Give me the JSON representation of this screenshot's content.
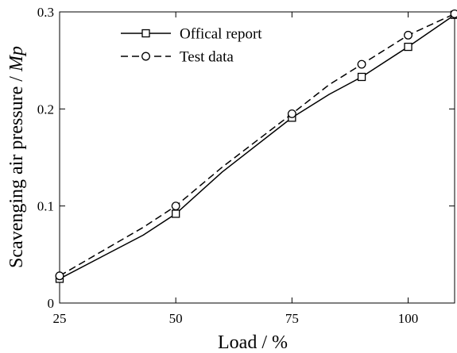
{
  "chart_data": {
    "type": "line",
    "title": "",
    "xlabel": "Load / %",
    "ylabel_prefix": "Scavenging air pressure / ",
    "ylabel_unit": "Mp",
    "xlim": [
      25,
      110
    ],
    "ylim": [
      0,
      0.3
    ],
    "xticks": [
      25,
      50,
      75,
      100
    ],
    "xtick_labels": [
      "25",
      "50",
      "75",
      "100"
    ],
    "yticks": [
      0,
      0.1,
      0.2,
      0.3
    ],
    "ytick_labels": [
      "0",
      "0.1",
      "0.2",
      "0.3"
    ],
    "grid": false,
    "legend_position": "top-left",
    "series": [
      {
        "name": "Offical report",
        "line_style": "solid",
        "marker": "square",
        "color": "#000000",
        "x": [
          25,
          43,
          50,
          60,
          75,
          83,
          90,
          100,
          110
        ],
        "y": [
          0.025,
          0.07,
          0.092,
          0.135,
          0.191,
          0.215,
          0.233,
          0.264,
          0.297
        ],
        "marker_x": [
          25,
          50,
          75,
          90,
          100,
          110
        ],
        "marker_y": [
          0.025,
          0.092,
          0.191,
          0.233,
          0.264,
          0.297
        ]
      },
      {
        "name": "Test data",
        "line_style": "dashed",
        "marker": "circle",
        "color": "#000000",
        "x": [
          25,
          43,
          50,
          60,
          75,
          83,
          90,
          100,
          110
        ],
        "y": [
          0.028,
          0.078,
          0.1,
          0.14,
          0.195,
          0.225,
          0.246,
          0.276,
          0.298
        ],
        "marker_x": [
          25,
          50,
          75,
          90,
          100,
          110
        ],
        "marker_y": [
          0.028,
          0.1,
          0.195,
          0.246,
          0.276,
          0.298
        ]
      }
    ]
  }
}
